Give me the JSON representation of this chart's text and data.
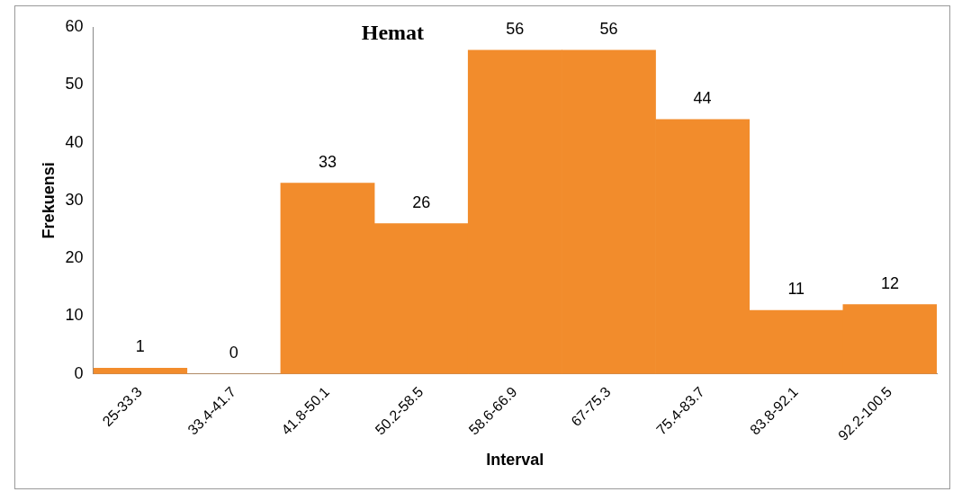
{
  "chart_data": {
    "type": "bar",
    "title": "Hemat",
    "xlabel": "Interval",
    "ylabel": "Frekuensi",
    "categories": [
      "25-33.3",
      "33.4-41.7",
      "41.8-50.1",
      "50.2-58.5",
      "58.6-66.9",
      "67-75.3",
      "75.4-83.7",
      "83.8-92.1",
      "92.2-100.5"
    ],
    "values": [
      1,
      0,
      33,
      26,
      56,
      56,
      44,
      11,
      12
    ],
    "color": "#f28c2c",
    "ylim": [
      0,
      60
    ],
    "yticks": [
      0,
      10,
      20,
      30,
      40,
      50,
      60
    ],
    "grid": false,
    "legend": false,
    "data_labels": true
  }
}
